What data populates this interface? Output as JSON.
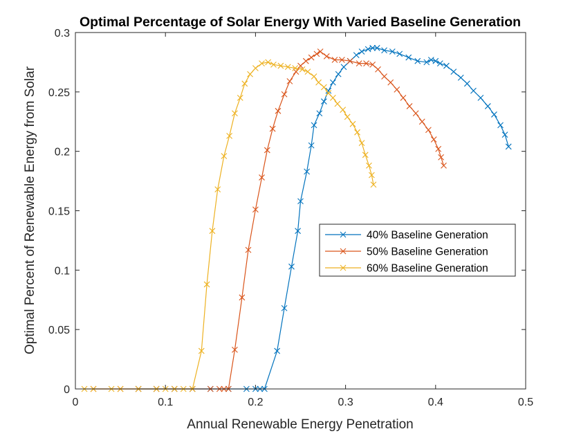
{
  "chart_data": {
    "type": "line",
    "title": "Optimal Percentage of Solar Energy With Varied Baseline Generation",
    "xlabel": "Annual Renewable Energy Penetration",
    "ylabel": "Optimal Percent of Renewable Energy from Solar",
    "xlim": [
      0,
      0.5
    ],
    "ylim": [
      0,
      0.3
    ],
    "x_ticks": [
      0,
      0.1,
      0.2,
      0.3,
      0.4,
      0.5
    ],
    "y_ticks": [
      0,
      0.05,
      0.1,
      0.15,
      0.2,
      0.25,
      0.3
    ],
    "x_tick_labels": [
      "0",
      "0.1",
      "0.2",
      "0.3",
      "0.4",
      "0.5"
    ],
    "y_tick_labels": [
      "0",
      "0.05",
      "0.1",
      "0.15",
      "0.2",
      "0.25",
      "0.3"
    ],
    "grid": false,
    "legend_position": "right-middle",
    "marker": "x",
    "series": [
      {
        "name": "40% Baseline Generation",
        "color": "#0072BD",
        "x": [
          0.07,
          0.09,
          0.11,
          0.13,
          0.15,
          0.17,
          0.19,
          0.2,
          0.205,
          0.21,
          0.224,
          0.232,
          0.24,
          0.247,
          0.25,
          0.257,
          0.262,
          0.265,
          0.271,
          0.276,
          0.281,
          0.286,
          0.292,
          0.298,
          0.305,
          0.312,
          0.318,
          0.325,
          0.33,
          0.335,
          0.343,
          0.352,
          0.36,
          0.37,
          0.38,
          0.39,
          0.395,
          0.4,
          0.405,
          0.412,
          0.42,
          0.428,
          0.435,
          0.442,
          0.45,
          0.458,
          0.465,
          0.472,
          0.477,
          0.481
        ],
        "y": [
          0,
          0,
          0,
          0,
          0,
          0,
          0,
          0,
          0,
          0,
          0.032,
          0.068,
          0.103,
          0.133,
          0.158,
          0.183,
          0.205,
          0.222,
          0.232,
          0.242,
          0.251,
          0.258,
          0.265,
          0.271,
          0.276,
          0.281,
          0.284,
          0.286,
          0.287,
          0.287,
          0.285,
          0.284,
          0.282,
          0.279,
          0.276,
          0.275,
          0.277,
          0.276,
          0.274,
          0.272,
          0.267,
          0.262,
          0.257,
          0.251,
          0.245,
          0.238,
          0.231,
          0.222,
          0.214,
          0.204
        ]
      },
      {
        "name": "50% Baseline Generation",
        "color": "#D95319",
        "x": [
          0.02,
          0.05,
          0.07,
          0.09,
          0.11,
          0.13,
          0.15,
          0.16,
          0.165,
          0.17,
          0.177,
          0.185,
          0.192,
          0.2,
          0.207,
          0.213,
          0.219,
          0.225,
          0.232,
          0.238,
          0.245,
          0.25,
          0.256,
          0.262,
          0.268,
          0.272,
          0.279,
          0.288,
          0.296,
          0.305,
          0.315,
          0.323,
          0.33,
          0.336,
          0.343,
          0.35,
          0.357,
          0.364,
          0.371,
          0.378,
          0.385,
          0.392,
          0.398,
          0.403,
          0.406,
          0.409
        ],
        "y": [
          0,
          0,
          0,
          0,
          0,
          0,
          0,
          0,
          0,
          0,
          0.033,
          0.077,
          0.117,
          0.151,
          0.178,
          0.201,
          0.219,
          0.234,
          0.248,
          0.259,
          0.267,
          0.272,
          0.276,
          0.279,
          0.282,
          0.284,
          0.28,
          0.277,
          0.277,
          0.276,
          0.274,
          0.274,
          0.273,
          0.269,
          0.263,
          0.258,
          0.252,
          0.245,
          0.238,
          0.232,
          0.225,
          0.218,
          0.21,
          0.202,
          0.195,
          0.188
        ]
      },
      {
        "name": "60% Baseline Generation",
        "color": "#EDB120",
        "x": [
          0.01,
          0.02,
          0.04,
          0.05,
          0.07,
          0.09,
          0.1,
          0.11,
          0.12,
          0.13,
          0.14,
          0.146,
          0.152,
          0.158,
          0.165,
          0.171,
          0.177,
          0.183,
          0.188,
          0.194,
          0.2,
          0.207,
          0.214,
          0.22,
          0.228,
          0.236,
          0.244,
          0.252,
          0.258,
          0.265,
          0.27,
          0.276,
          0.281,
          0.286,
          0.291,
          0.297,
          0.302,
          0.308,
          0.313,
          0.318,
          0.322,
          0.326,
          0.329,
          0.331
        ],
        "y": [
          0,
          0,
          0,
          0,
          0,
          0,
          0,
          0,
          0,
          0,
          0.032,
          0.088,
          0.133,
          0.168,
          0.196,
          0.213,
          0.232,
          0.245,
          0.257,
          0.265,
          0.27,
          0.274,
          0.275,
          0.273,
          0.272,
          0.271,
          0.27,
          0.269,
          0.267,
          0.263,
          0.258,
          0.254,
          0.249,
          0.245,
          0.24,
          0.235,
          0.229,
          0.223,
          0.216,
          0.207,
          0.197,
          0.188,
          0.18,
          0.172
        ]
      }
    ]
  }
}
